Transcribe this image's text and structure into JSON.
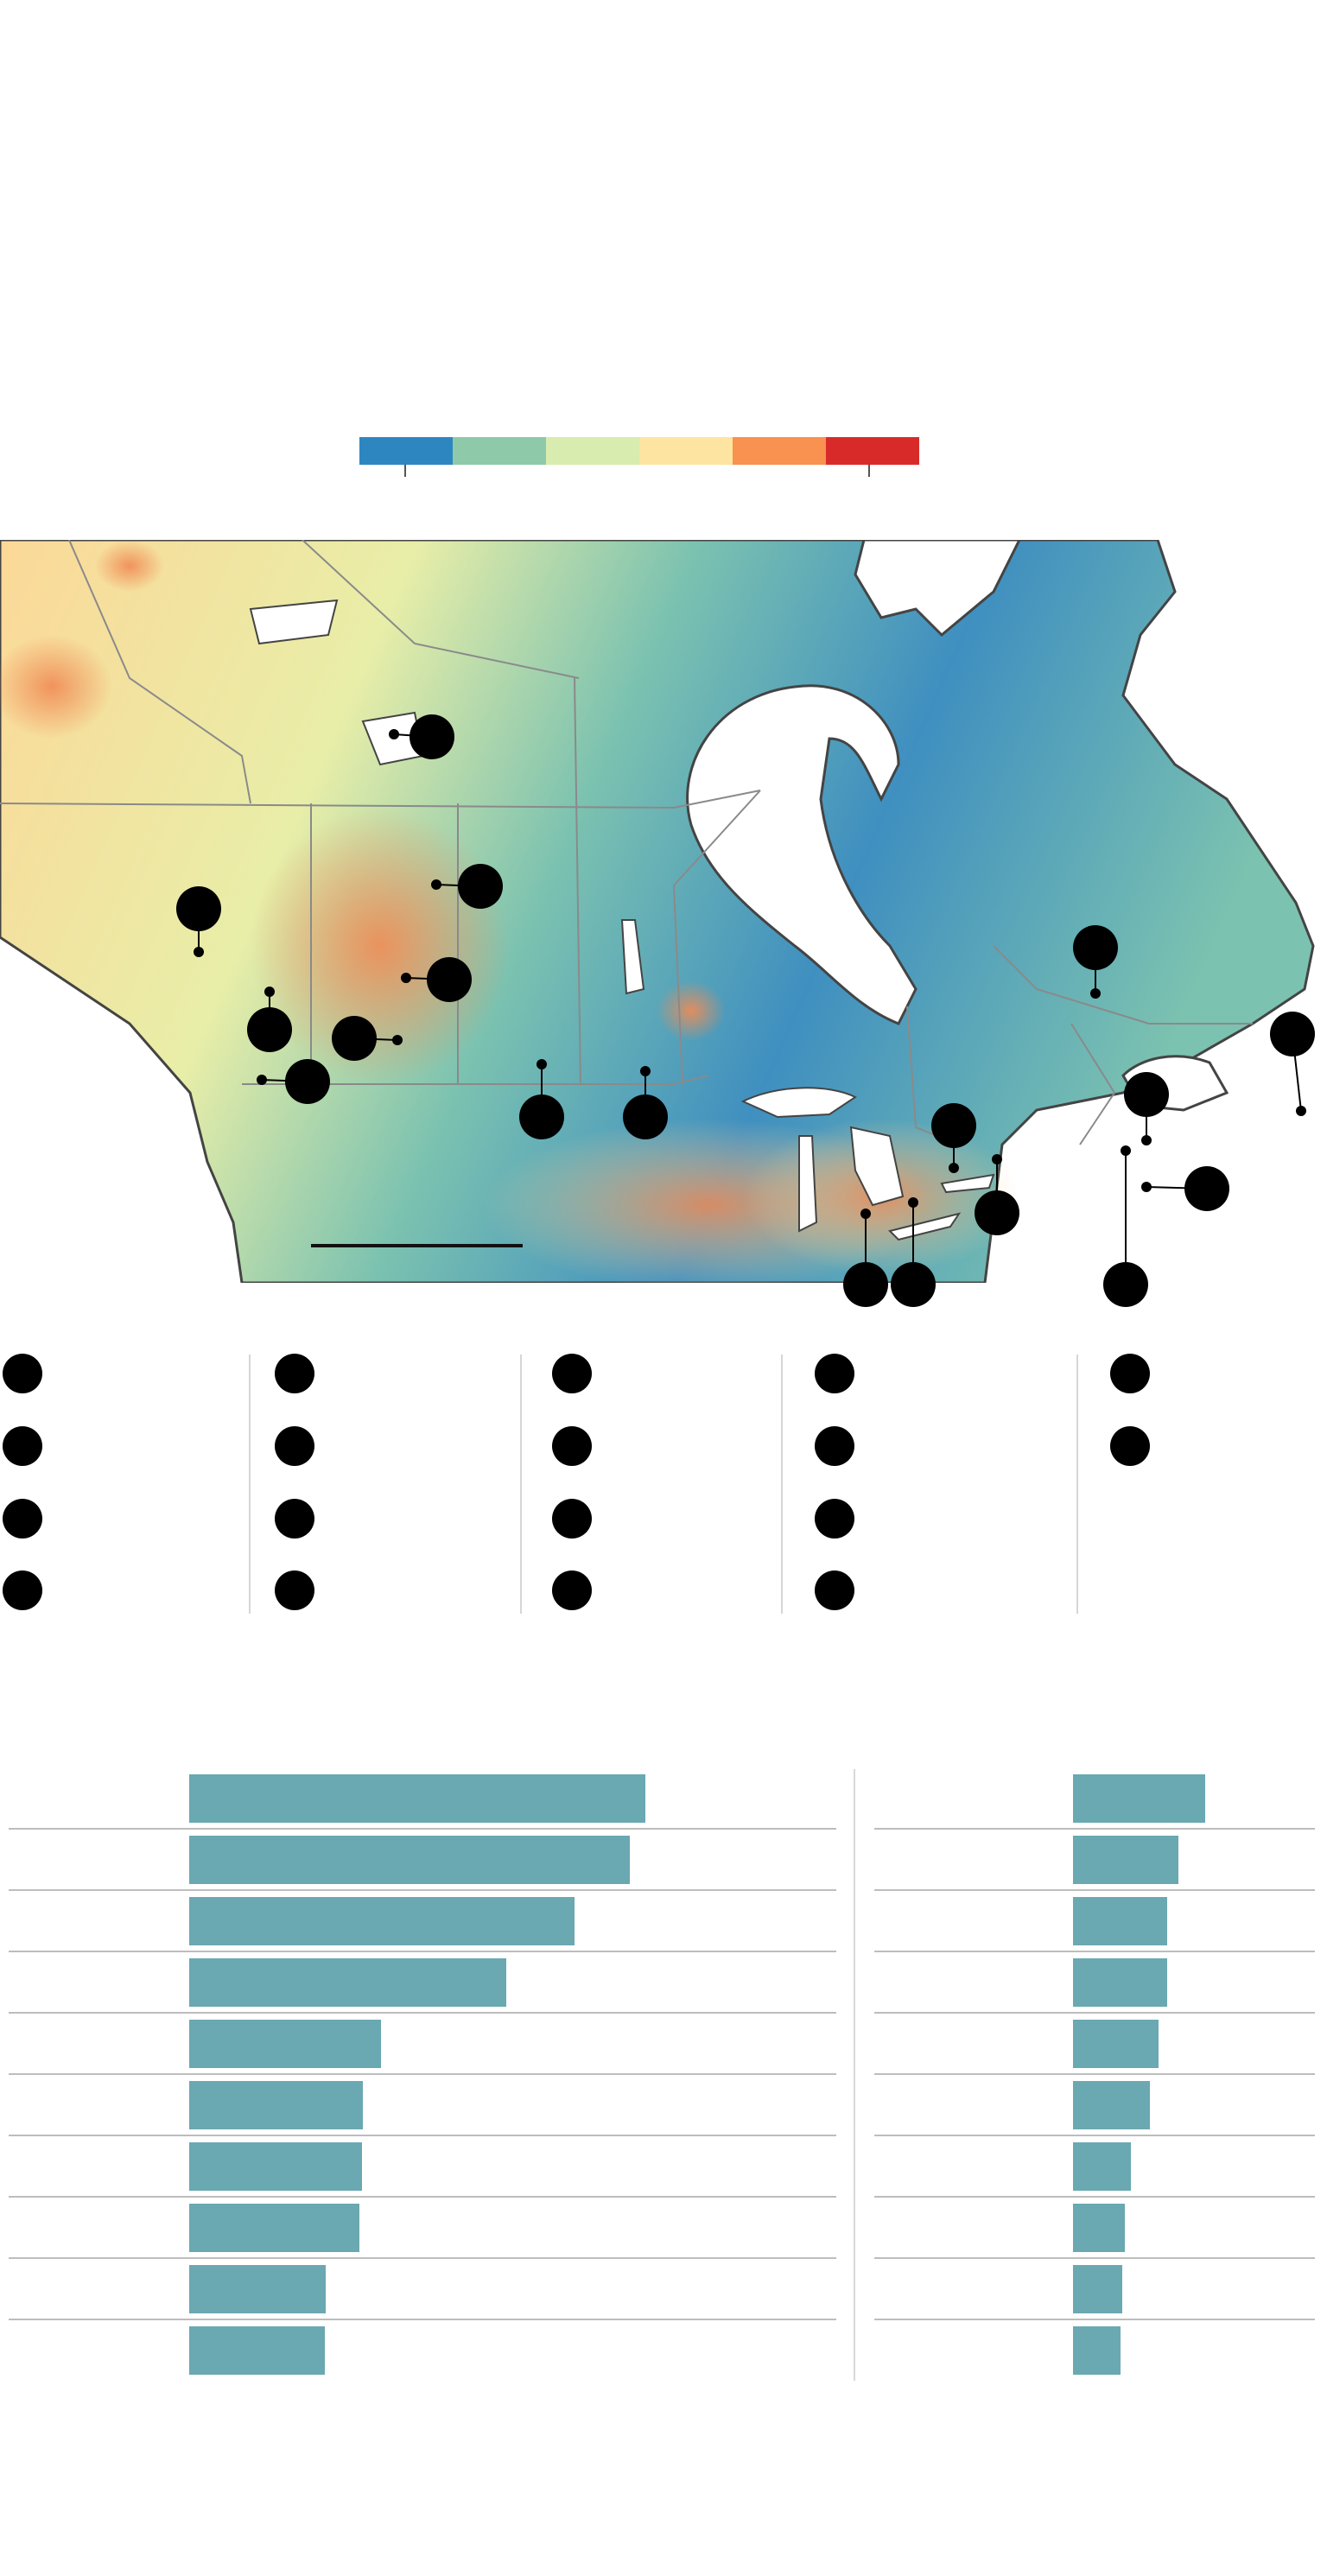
{
  "legend": {
    "colors": [
      "#2e86c1",
      "#8ecaa9",
      "#d9ecb0",
      "#fde4a0",
      "#f99150",
      "#d92a2a"
    ]
  },
  "map": {
    "palette": {
      "cold": "#3f8fc0",
      "cool": "#7cc2b0",
      "mild": "#e8eea8",
      "warm": "#fcd898",
      "hot": "#f08b55",
      "land_outline": "#444444",
      "water": "#ffffff",
      "border": "#8a8a8a"
    },
    "scale_bar": true
  },
  "markers": [
    {
      "name": "marker-1",
      "label": ""
    },
    {
      "name": "marker-2",
      "label": ""
    },
    {
      "name": "marker-3",
      "label": ""
    },
    {
      "name": "marker-4",
      "label": ""
    },
    {
      "name": "marker-5",
      "label": ""
    },
    {
      "name": "marker-6",
      "label": ""
    },
    {
      "name": "marker-7",
      "label": ""
    },
    {
      "name": "marker-8",
      "label": ""
    },
    {
      "name": "marker-9",
      "label": ""
    },
    {
      "name": "marker-10",
      "label": ""
    },
    {
      "name": "marker-11",
      "label": ""
    },
    {
      "name": "marker-12",
      "label": ""
    },
    {
      "name": "marker-13",
      "label": ""
    },
    {
      "name": "marker-14",
      "label": ""
    },
    {
      "name": "marker-15",
      "label": ""
    },
    {
      "name": "marker-16",
      "label": ""
    },
    {
      "name": "marker-17",
      "label": ""
    },
    {
      "name": "marker-18",
      "label": ""
    }
  ],
  "key_columns": [
    {
      "count": 4
    },
    {
      "count": 4
    },
    {
      "count": 4
    },
    {
      "count": 4
    },
    {
      "count": 2
    }
  ],
  "chart_data": [
    {
      "type": "bar",
      "orientation": "horizontal",
      "color": "#6aa8b2",
      "relative_values": [
        1.0,
        0.965,
        0.845,
        0.695,
        0.42,
        0.38,
        0.378,
        0.373,
        0.3,
        0.298
      ]
    },
    {
      "type": "bar",
      "orientation": "horizontal",
      "color": "#6aa8b2",
      "relative_values": [
        1.0,
        0.8,
        0.71,
        0.71,
        0.65,
        0.58,
        0.44,
        0.39,
        0.37,
        0.36
      ]
    }
  ]
}
